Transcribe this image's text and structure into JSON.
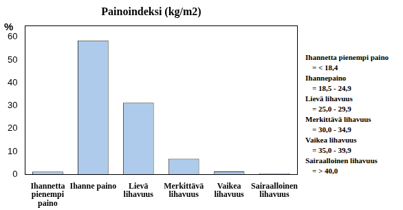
{
  "chart_data": {
    "type": "bar",
    "title": "Painoindeksi (kg/m2)",
    "ylabel": "%",
    "categories": [
      "Ihannetta pienempi paino",
      "Ihanne paino",
      "Lievä lihavuus",
      "Merkittävä lihavuus",
      "Vaikea lihavuus",
      "Sairaalloinen lihavuus"
    ],
    "values": [
      1.2,
      58.5,
      31.3,
      6.8,
      1.3,
      0.4
    ],
    "color": "#aecbeb",
    "ylim": [
      0,
      65
    ],
    "yticks": [
      0,
      10,
      20,
      30,
      40,
      50,
      60
    ],
    "grid": false,
    "annotations": [
      "Ihannetta pienempi paino",
      "= < 18,4",
      "Ihannepaino",
      "= 18,5 - 24,9",
      "Lievä lihavuus",
      "= 25,0 - 29,9",
      "Merkittävä lihavuus",
      "= 30,0 - 34,9",
      "Vaikea lihavuus",
      "= 35,0 - 39,9",
      "Sairaalloinen lihavuus",
      "= > 40,0"
    ]
  }
}
